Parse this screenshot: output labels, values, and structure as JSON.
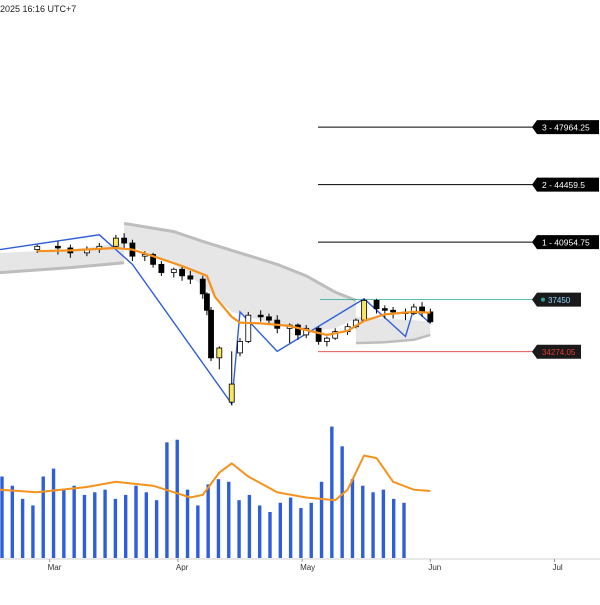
{
  "header": {
    "timestamp": "2025 16:16 UTC+7"
  },
  "chart_data": {
    "type": "candlestick",
    "x_axis": {
      "ticks": [
        {
          "label": "Mar",
          "date": "2025-03-01"
        },
        {
          "label": "Apr",
          "date": "2025-04-01"
        },
        {
          "label": "May",
          "date": "2025-05-01"
        },
        {
          "label": "Jun",
          "date": "2025-06-01"
        },
        {
          "label": "Jul",
          "date": "2025-07-01"
        }
      ],
      "range": [
        "2025-02-17",
        "2025-07-12"
      ]
    },
    "y_range": [
      29500,
      54500
    ],
    "price_levels": [
      {
        "label": "3 - 47964.25",
        "value": 47964.25,
        "kind": "target"
      },
      {
        "label": "2 - 44459.5",
        "value": 44459.5,
        "kind": "target"
      },
      {
        "label": "1 - 40954.75",
        "value": 40954.75,
        "kind": "target"
      },
      {
        "label": "37450",
        "value": 37450,
        "kind": "entry"
      },
      {
        "label": "34274.05",
        "value": 34274.05,
        "kind": "stop"
      }
    ],
    "candles": [
      {
        "d": "2025-02-26",
        "o": 40500,
        "h": 40800,
        "c": 40700,
        "l": 40300
      },
      {
        "d": "2025-03-03",
        "o": 40700,
        "h": 41000,
        "c": 40600,
        "l": 40200
      },
      {
        "d": "2025-03-06",
        "o": 40600,
        "h": 40800,
        "c": 40300,
        "l": 40000
      },
      {
        "d": "2025-03-10",
        "o": 40300,
        "h": 40700,
        "c": 40500,
        "l": 40100
      },
      {
        "d": "2025-03-13",
        "o": 40500,
        "h": 40900,
        "c": 40700,
        "l": 40300
      },
      {
        "d": "2025-03-17",
        "o": 40700,
        "h": 41400,
        "c": 41200,
        "l": 40600
      },
      {
        "d": "2025-03-19",
        "o": 41200,
        "h": 41500,
        "c": 40900,
        "l": 40600
      },
      {
        "d": "2025-03-21",
        "o": 40900,
        "h": 41100,
        "c": 40100,
        "l": 39800
      },
      {
        "d": "2025-03-24",
        "o": 40100,
        "h": 40400,
        "c": 40200,
        "l": 39800
      },
      {
        "d": "2025-03-26",
        "o": 40200,
        "h": 40300,
        "c": 39600,
        "l": 39400
      },
      {
        "d": "2025-03-28",
        "o": 39600,
        "h": 39800,
        "c": 39100,
        "l": 38900
      },
      {
        "d": "2025-03-31",
        "o": 39100,
        "h": 39400,
        "c": 39300,
        "l": 38800
      },
      {
        "d": "2025-04-02",
        "o": 39300,
        "h": 39500,
        "c": 38900,
        "l": 38600
      },
      {
        "d": "2025-04-04",
        "o": 38900,
        "h": 39200,
        "c": 38700,
        "l": 38400
      },
      {
        "d": "2025-04-07",
        "o": 38700,
        "h": 38900,
        "c": 37800,
        "l": 37500
      },
      {
        "d": "2025-04-08",
        "o": 37800,
        "h": 37900,
        "c": 36800,
        "l": 36500
      },
      {
        "d": "2025-04-09",
        "o": 36800,
        "h": 37000,
        "c": 33900,
        "l": 33700
      },
      {
        "d": "2025-04-11",
        "o": 33900,
        "h": 34600,
        "c": 34500,
        "l": 33200
      },
      {
        "d": "2025-04-14",
        "o": 31200,
        "h": 34300,
        "c": 32300,
        "l": 31000
      },
      {
        "d": "2025-04-16",
        "o": 34200,
        "h": 35100,
        "c": 34900,
        "l": 34000
      },
      {
        "d": "2025-04-18",
        "o": 34900,
        "h": 36700,
        "c": 36500,
        "l": 34800
      },
      {
        "d": "2025-04-21",
        "o": 36500,
        "h": 36800,
        "c": 36400,
        "l": 36100
      },
      {
        "d": "2025-04-23",
        "o": 36400,
        "h": 36600,
        "c": 36200,
        "l": 35900
      },
      {
        "d": "2025-04-25",
        "o": 36200,
        "h": 36500,
        "c": 35700,
        "l": 35400
      },
      {
        "d": "2025-04-28",
        "o": 35700,
        "h": 36000,
        "c": 35900,
        "l": 34800
      },
      {
        "d": "2025-04-30",
        "o": 35900,
        "h": 36000,
        "c": 35300,
        "l": 35000
      },
      {
        "d": "2025-05-02",
        "o": 35300,
        "h": 35900,
        "c": 35700,
        "l": 35100
      },
      {
        "d": "2025-05-05",
        "o": 35700,
        "h": 35800,
        "c": 34900,
        "l": 34700
      },
      {
        "d": "2025-05-07",
        "o": 34900,
        "h": 35200,
        "c": 35100,
        "l": 34600
      },
      {
        "d": "2025-05-09",
        "o": 35100,
        "h": 35700,
        "c": 35500,
        "l": 35000
      },
      {
        "d": "2025-05-12",
        "o": 35500,
        "h": 36000,
        "c": 35800,
        "l": 35300
      },
      {
        "d": "2025-05-14",
        "o": 35800,
        "h": 36300,
        "c": 36200,
        "l": 35700
      },
      {
        "d": "2025-05-16",
        "o": 36200,
        "h": 37500,
        "c": 37400,
        "l": 36100
      },
      {
        "d": "2025-05-19",
        "o": 37400,
        "h": 37500,
        "c": 36900,
        "l": 36600
      },
      {
        "d": "2025-05-21",
        "o": 36900,
        "h": 37100,
        "c": 36800,
        "l": 36300
      },
      {
        "d": "2025-05-23",
        "o": 36800,
        "h": 37000,
        "c": 36700,
        "l": 36300
      },
      {
        "d": "2025-05-26",
        "o": 36700,
        "h": 36900,
        "c": 36600,
        "l": 36200
      },
      {
        "d": "2025-05-28",
        "o": 36600,
        "h": 37200,
        "c": 37000,
        "l": 36500
      },
      {
        "d": "2025-05-30",
        "o": 37000,
        "h": 37300,
        "c": 36700,
        "l": 36400
      },
      {
        "d": "2025-06-01",
        "o": 36700,
        "h": 36900,
        "c": 36100,
        "l": 36000
      }
    ],
    "moving_average": [
      {
        "d": "2025-02-26",
        "v": 40400
      },
      {
        "d": "2025-03-06",
        "v": 40450
      },
      {
        "d": "2025-03-17",
        "v": 40600
      },
      {
        "d": "2025-03-21",
        "v": 40500
      },
      {
        "d": "2025-03-26",
        "v": 40100
      },
      {
        "d": "2025-04-02",
        "v": 39500
      },
      {
        "d": "2025-04-08",
        "v": 38900
      },
      {
        "d": "2025-04-10",
        "v": 37600
      },
      {
        "d": "2025-04-14",
        "v": 36400
      },
      {
        "d": "2025-04-16",
        "v": 36050
      },
      {
        "d": "2025-04-21",
        "v": 36000
      },
      {
        "d": "2025-04-28",
        "v": 35850
      },
      {
        "d": "2025-05-02",
        "v": 35600
      },
      {
        "d": "2025-05-07",
        "v": 35300
      },
      {
        "d": "2025-05-12",
        "v": 35550
      },
      {
        "d": "2025-05-16",
        "v": 36150
      },
      {
        "d": "2025-05-21",
        "v": 36550
      },
      {
        "d": "2025-05-28",
        "v": 36700
      },
      {
        "d": "2025-06-01",
        "v": 36650
      }
    ],
    "zigzag": [
      {
        "d": "2025-02-17",
        "v": 40500
      },
      {
        "d": "2025-03-13",
        "v": 41400
      },
      {
        "d": "2025-03-21",
        "v": 39600
      },
      {
        "d": "2025-04-14",
        "v": 31100
      },
      {
        "d": "2025-04-16",
        "v": 36700
      },
      {
        "d": "2025-04-25",
        "v": 34300
      },
      {
        "d": "2025-05-16",
        "v": 37500
      },
      {
        "d": "2025-05-26",
        "v": 35200
      },
      {
        "d": "2025-05-28",
        "v": 36900
      },
      {
        "d": "2025-06-01",
        "v": 36000
      }
    ],
    "band_upper": [
      {
        "d": "2025-03-19",
        "v": 42100
      },
      {
        "d": "2025-03-31",
        "v": 41600
      },
      {
        "d": "2025-04-07",
        "v": 41000
      },
      {
        "d": "2025-04-16",
        "v": 40300
      },
      {
        "d": "2025-04-25",
        "v": 39600
      },
      {
        "d": "2025-05-02",
        "v": 38900
      },
      {
        "d": "2025-05-09",
        "v": 37900
      },
      {
        "d": "2025-05-14",
        "v": 37400
      }
    ],
    "band_lower": [
      {
        "d": "2025-02-17",
        "v": 39100
      },
      {
        "d": "2025-03-06",
        "v": 39400
      },
      {
        "d": "2025-03-19",
        "v": 39700
      }
    ],
    "band_lower_2": [
      {
        "d": "2025-05-14",
        "v": 34800
      },
      {
        "d": "2025-05-21",
        "v": 34850
      },
      {
        "d": "2025-05-28",
        "v": 35000
      },
      {
        "d": "2025-06-01",
        "v": 35300
      }
    ],
    "volume": [
      62,
      55,
      45,
      40,
      62,
      68,
      52,
      55,
      48,
      50,
      52,
      45,
      48,
      55,
      50,
      44,
      88,
      90,
      52,
      40,
      56,
      60,
      58,
      44,
      48,
      40,
      35,
      42,
      46,
      38,
      42,
      58,
      100,
      85,
      60,
      55,
      50,
      52,
      45,
      42
    ],
    "volume_ma": [
      {
        "d": "2025-02-17",
        "v": 52
      },
      {
        "d": "2025-02-26",
        "v": 50
      },
      {
        "d": "2025-03-10",
        "v": 54
      },
      {
        "d": "2025-03-17",
        "v": 58
      },
      {
        "d": "2025-03-26",
        "v": 55
      },
      {
        "d": "2025-04-04",
        "v": 46
      },
      {
        "d": "2025-04-07",
        "v": 48
      },
      {
        "d": "2025-04-11",
        "v": 65
      },
      {
        "d": "2025-04-14",
        "v": 72
      },
      {
        "d": "2025-04-18",
        "v": 62
      },
      {
        "d": "2025-04-25",
        "v": 50
      },
      {
        "d": "2025-05-02",
        "v": 46
      },
      {
        "d": "2025-05-09",
        "v": 44
      },
      {
        "d": "2025-05-12",
        "v": 52
      },
      {
        "d": "2025-05-16",
        "v": 78
      },
      {
        "d": "2025-05-19",
        "v": 76
      },
      {
        "d": "2025-05-23",
        "v": 58
      },
      {
        "d": "2025-05-28",
        "v": 52
      },
      {
        "d": "2025-06-01",
        "v": 51
      }
    ],
    "volume_ymax": 105,
    "colors": {
      "candle_up": "#ffffff",
      "candle_down": "#000000",
      "candle_highlight": "#f5e663",
      "moving_average": "#f5921e",
      "zigzag": "#2f5fd8",
      "band_fill": "#e6e6e6",
      "band_edge": "#bdbdbd",
      "volume_bar": "#2f5fd8",
      "volume_ma": "#f5921e",
      "level_target": "#000000",
      "level_entry": "#26a69a",
      "level_stop": "#e53935"
    }
  }
}
